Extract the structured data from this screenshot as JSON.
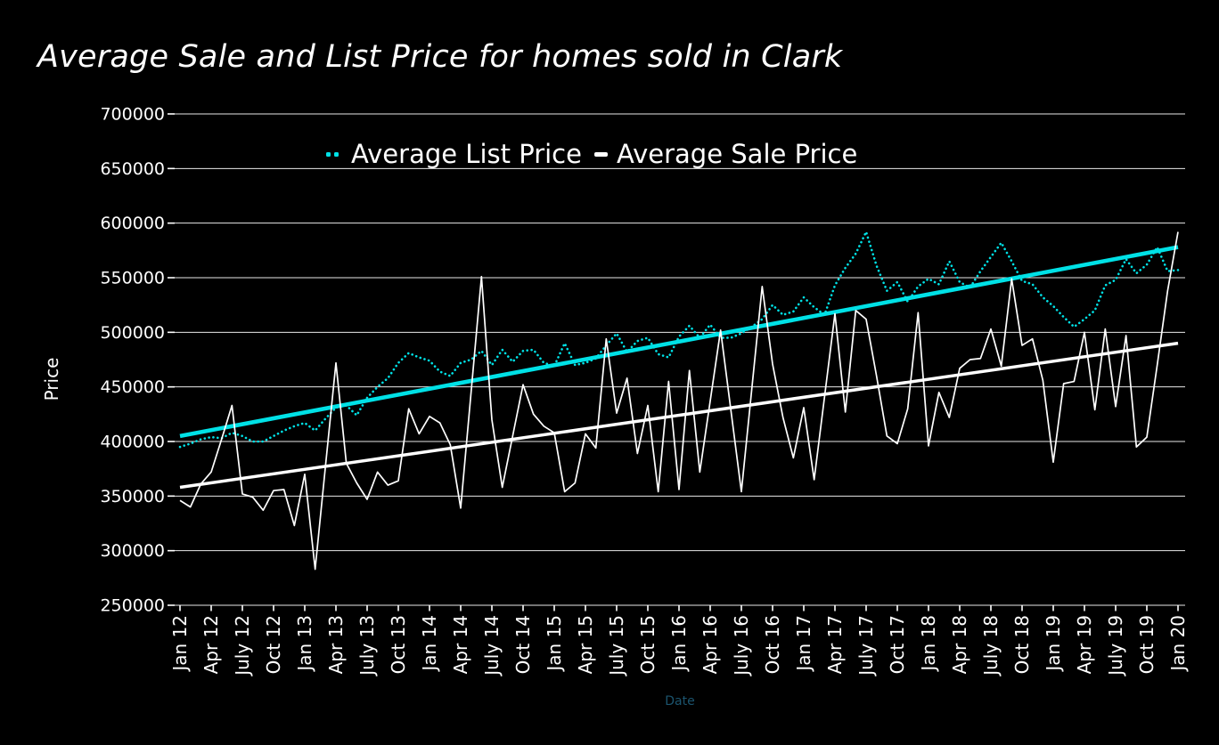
{
  "page": {
    "background": "#000000",
    "accent_cyan": "#00e1e6",
    "accent_white": "#ffffff",
    "date_label_color": "#1b546e"
  },
  "header": {
    "title": "Average Sale and List Price for homes sold in Clark"
  },
  "legend": {
    "position": "top-center",
    "entries": [
      {
        "label": "Average List Price",
        "marker": "dotted",
        "color": "#00e1e6"
      },
      {
        "label": "Average Sale Price",
        "marker": "dash",
        "color": "#ffffff"
      }
    ]
  },
  "axes": {
    "ylabel": "Price",
    "xlabel": "Date",
    "y_tick_labels": [
      "250000",
      "300000",
      "350000",
      "400000",
      "450000",
      "500000",
      "550000",
      "600000",
      "650000",
      "700000"
    ],
    "x_tick_labels": [
      "Jan 12",
      "Apr 12",
      "July 12",
      "Oct 12",
      "Jan 13",
      "Apr 13",
      "July 13",
      "Oct 13",
      "Jan 14",
      "Apr 14",
      "July 14",
      "Oct 14",
      "Jan 15",
      "Apr 15",
      "July 15",
      "Oct 15",
      "Jan 16",
      "Apr 16",
      "July 16",
      "Oct 16",
      "Jan 17",
      "Apr 17",
      "July 17",
      "Oct 17",
      "Jan 18",
      "Apr 18",
      "July 18",
      "Oct 18",
      "Jan 19",
      "Apr 19",
      "July 19",
      "Oct 19",
      "Jan 20"
    ]
  },
  "chart_data": {
    "type": "line",
    "title": "Average Sale and List Price for homes sold in Clark",
    "xlabel": "Date",
    "ylabel": "Price",
    "ylim": [
      250000,
      700000
    ],
    "ytick_step": 50000,
    "grid": "horizontal",
    "legend_position": "top-center",
    "x_unit": "month",
    "x_start": "Jan 2012",
    "x_end": "Jan 2020",
    "x_months": 97,
    "x_tick_every": 3,
    "x_tick_labels": [
      "Jan 12",
      "Apr 12",
      "July 12",
      "Oct 12",
      "Jan 13",
      "Apr 13",
      "July 13",
      "Oct 13",
      "Jan 14",
      "Apr 14",
      "July 14",
      "Oct 14",
      "Jan 15",
      "Apr 15",
      "July 15",
      "Oct 15",
      "Jan 16",
      "Apr 16",
      "July 16",
      "Oct 16",
      "Jan 17",
      "Apr 17",
      "July 17",
      "Oct 17",
      "Jan 18",
      "Apr 18",
      "July 18",
      "Oct 18",
      "Jan 19",
      "Apr 19",
      "July 19",
      "Oct 19",
      "Jan 20"
    ],
    "series": [
      {
        "name": "Average List Price",
        "style": "dotted",
        "color": "#00e1e6",
        "values": [
          395000,
          398000,
          402000,
          404000,
          403000,
          408000,
          405000,
          400000,
          400000,
          405000,
          410000,
          414000,
          417000,
          410000,
          421000,
          431000,
          433000,
          424000,
          440000,
          450000,
          458000,
          472000,
          481000,
          477000,
          474000,
          464000,
          460000,
          472000,
          475000,
          483000,
          470000,
          484000,
          473000,
          483000,
          484000,
          472000,
          469000,
          490000,
          470000,
          472000,
          476000,
          488000,
          499000,
          482000,
          492000,
          495000,
          480000,
          477000,
          496000,
          506000,
          495000,
          507000,
          495000,
          495000,
          499000,
          505000,
          512000,
          525000,
          516000,
          519000,
          532000,
          523000,
          516000,
          543000,
          559000,
          572000,
          592000,
          561000,
          538000,
          546000,
          528000,
          542000,
          549000,
          544000,
          565000,
          546000,
          541000,
          556000,
          569000,
          582000,
          565000,
          547000,
          544000,
          532000,
          524000,
          514000,
          505000,
          512000,
          520000,
          543000,
          548000,
          567000,
          554000,
          562000,
          578000,
          556000,
          557000
        ]
      },
      {
        "name": "Average Sale Price",
        "style": "solid",
        "color": "#ffffff",
        "values": [
          346000,
          340000,
          361000,
          372000,
          402000,
          433000,
          352000,
          349000,
          337000,
          355000,
          356000,
          323000,
          370000,
          283000,
          378000,
          472000,
          380000,
          362000,
          347000,
          372000,
          360000,
          364000,
          430000,
          407000,
          423000,
          417000,
          397000,
          339000,
          445000,
          551000,
          420000,
          358000,
          405000,
          452000,
          425000,
          414000,
          408000,
          354000,
          362000,
          407000,
          394000,
          494000,
          426000,
          458000,
          389000,
          433000,
          354000,
          455000,
          356000,
          465000,
          372000,
          437000,
          502000,
          428000,
          354000,
          448000,
          542000,
          471000,
          422000,
          385000,
          431000,
          365000,
          441000,
          517000,
          427000,
          520000,
          512000,
          460000,
          405000,
          398000,
          430000,
          518000,
          396000,
          445000,
          422000,
          467000,
          475000,
          476000,
          503000,
          469000,
          549000,
          488000,
          494000,
          456000,
          381000,
          453000,
          455000,
          500000,
          429000,
          503000,
          432000,
          497000,
          395000,
          404000,
          470000,
          538000,
          592000
        ]
      },
      {
        "name": "Average List Price trend",
        "style": "trend",
        "color": "#00e1e6",
        "endpoints": [
          405000,
          578000
        ]
      },
      {
        "name": "Average Sale Price trend",
        "style": "trend",
        "color": "#ffffff",
        "endpoints": [
          358000,
          490000
        ]
      }
    ]
  }
}
